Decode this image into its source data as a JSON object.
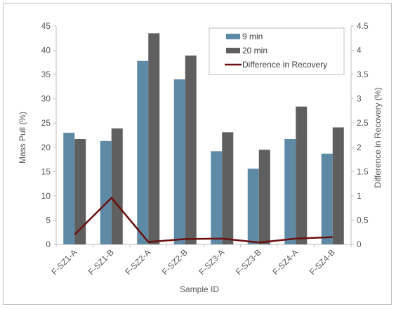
{
  "chart_data": {
    "type": "bar",
    "categories": [
      "F-SZ1-A",
      "F-SZ1-B",
      "F-SZ2-A",
      "F-SZ2-B",
      "F-SZ3-A",
      "F-SZ3-B",
      "F-SZ4-A",
      "F-SZ4-B"
    ],
    "series": [
      {
        "name": "9 min",
        "type": "bar",
        "axis": "left",
        "color": "#5f8aa6",
        "values": [
          23.0,
          21.3,
          37.8,
          34.0,
          19.2,
          15.6,
          21.7,
          18.7
        ]
      },
      {
        "name": "20 min",
        "type": "bar",
        "axis": "left",
        "color": "#5f5f5f",
        "values": [
          21.7,
          23.9,
          43.5,
          38.9,
          23.1,
          19.5,
          28.4,
          24.1
        ]
      },
      {
        "name": "Difference in Recovery",
        "type": "line",
        "axis": "right",
        "color": "#6b0f0f",
        "values": [
          0.2,
          0.96,
          0.05,
          0.11,
          0.12,
          0.04,
          0.12,
          0.15
        ]
      }
    ],
    "xlabel": "Sample ID",
    "ylabel": "Mass Pull (%)",
    "y2label": "Difference in Recovery (%)",
    "ylim": [
      0,
      45
    ],
    "y2lim": [
      0,
      4.5
    ],
    "yticks": [
      "0",
      "5",
      "10",
      "15",
      "20",
      "25",
      "30",
      "35",
      "40",
      "45"
    ],
    "y2ticks": [
      "0",
      "0.5",
      "1",
      "1.5",
      "2",
      "2.5",
      "3",
      "3.5",
      "4",
      "4.5"
    ],
    "grid": false,
    "legend": "top-right"
  }
}
